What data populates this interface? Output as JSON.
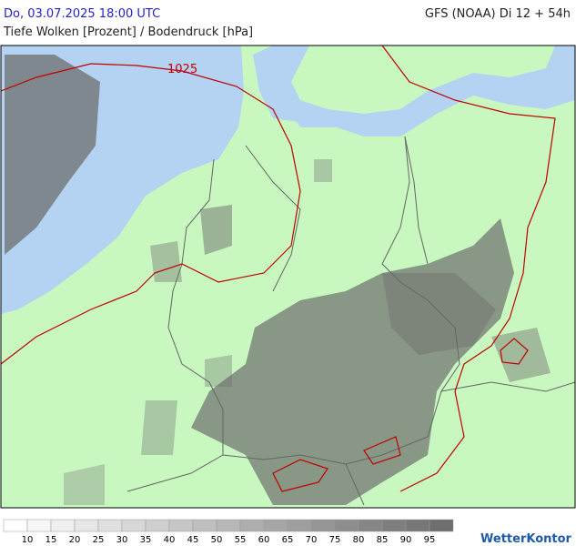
{
  "header": {
    "datetime": "Do, 03.07.2025 18:00 UTC",
    "model": "GFS (NOAA) Di 12 + 54h",
    "subtitle": "Tiefe Wolken [Prozent] / Bodendruck [hPa]"
  },
  "map": {
    "isobar_labels": [
      "1025"
    ]
  },
  "legend": {
    "levels": [
      10,
      15,
      20,
      25,
      30,
      35,
      40,
      45,
      50,
      55,
      60,
      65,
      70,
      75,
      80,
      85,
      90,
      95
    ]
  },
  "logo": "WetterKontor"
}
